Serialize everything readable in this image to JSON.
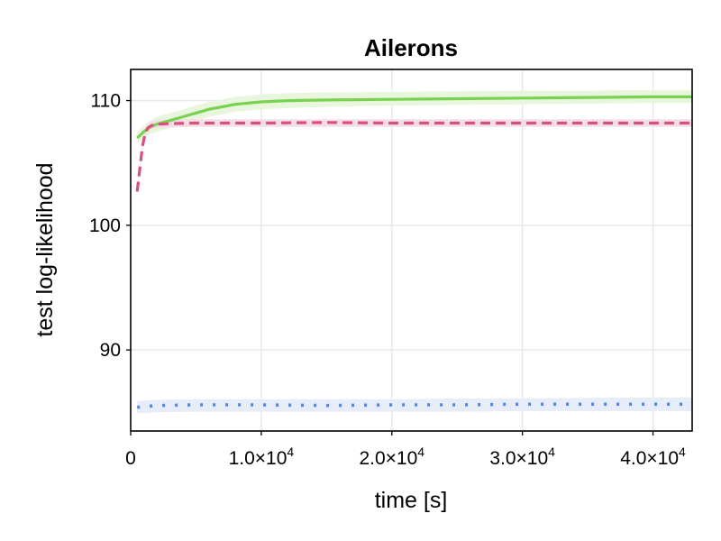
{
  "chart_data": {
    "type": "line",
    "title": "Ailerons",
    "xlabel": "time [s]",
    "ylabel": "test log-likelihood",
    "xlim": [
      0,
      43000
    ],
    "ylim": [
      83.5,
      112.5
    ],
    "xticks": [
      0,
      10000,
      20000,
      30000,
      40000
    ],
    "xtick_labels": [
      {
        "mantissa": "0",
        "exp": ""
      },
      {
        "mantissa": "1.0×10",
        "exp": "4"
      },
      {
        "mantissa": "2.0×10",
        "exp": "4"
      },
      {
        "mantissa": "3.0×10",
        "exp": "4"
      },
      {
        "mantissa": "4.0×10",
        "exp": "4"
      }
    ],
    "yticks": [
      90,
      100,
      110
    ],
    "ytick_labels": [
      "90",
      "100",
      "110"
    ],
    "grid": true,
    "series": [
      {
        "color": "#7ad151",
        "band_color": "#e9f6de",
        "style": "solid",
        "x": [
          500,
          1000,
          1500,
          2000,
          3000,
          4000,
          5000,
          6000,
          7000,
          8000,
          9000,
          10000,
          12000,
          15000,
          20000,
          25000,
          30000,
          35000,
          40000,
          43000
        ],
        "y": [
          107.0,
          107.5,
          107.9,
          108.1,
          108.4,
          108.7,
          109.0,
          109.3,
          109.5,
          109.7,
          109.8,
          109.9,
          110.0,
          110.05,
          110.1,
          110.15,
          110.2,
          110.25,
          110.3,
          110.3
        ],
        "lower": [
          106.5,
          107.0,
          107.3,
          107.5,
          107.8,
          108.1,
          108.4,
          108.7,
          108.9,
          109.1,
          109.2,
          109.3,
          109.4,
          109.5,
          109.6,
          109.65,
          109.7,
          109.75,
          109.8,
          109.8
        ],
        "upper": [
          107.5,
          108.0,
          108.4,
          108.7,
          109.0,
          109.3,
          109.6,
          109.9,
          110.1,
          110.3,
          110.4,
          110.5,
          110.6,
          110.65,
          110.7,
          110.75,
          110.8,
          110.8,
          110.85,
          110.85
        ]
      },
      {
        "color": "#d9507a",
        "band_color": "#f5dde6",
        "style": "dashed",
        "x": [
          500,
          700,
          900,
          1100,
          1300,
          1600,
          2000,
          3000,
          5000,
          10000,
          15000,
          20000,
          25000,
          30000,
          35000,
          40000,
          43000
        ],
        "y": [
          102.7,
          104.5,
          106.3,
          107.3,
          107.8,
          108.0,
          108.1,
          108.15,
          108.2,
          108.2,
          108.25,
          108.2,
          108.2,
          108.2,
          108.2,
          108.2,
          108.2
        ],
        "lower": [
          102.5,
          104.3,
          106.0,
          107.0,
          107.5,
          107.7,
          107.8,
          107.85,
          107.9,
          107.9,
          107.9,
          107.9,
          107.9,
          107.9,
          107.9,
          107.9,
          107.9
        ],
        "upper": [
          102.9,
          104.7,
          106.6,
          107.6,
          108.1,
          108.35,
          108.45,
          108.5,
          108.5,
          108.5,
          108.5,
          108.5,
          108.5,
          108.5,
          108.5,
          108.5,
          108.5
        ]
      },
      {
        "color": "#5b86d6",
        "band_color": "#e6edf8",
        "style": "dotted",
        "x": [
          500,
          2000,
          5000,
          10000,
          15000,
          20000,
          25000,
          30000,
          35000,
          40000,
          43000
        ],
        "y": [
          85.4,
          85.55,
          85.6,
          85.6,
          85.55,
          85.6,
          85.6,
          85.65,
          85.65,
          85.65,
          85.65
        ],
        "lower": [
          84.9,
          85.0,
          85.05,
          85.05,
          85.05,
          85.05,
          85.05,
          85.1,
          85.1,
          85.1,
          85.1
        ],
        "upper": [
          85.9,
          86.0,
          86.05,
          86.05,
          86.05,
          86.05,
          86.1,
          86.1,
          86.15,
          86.2,
          86.2
        ]
      }
    ]
  }
}
